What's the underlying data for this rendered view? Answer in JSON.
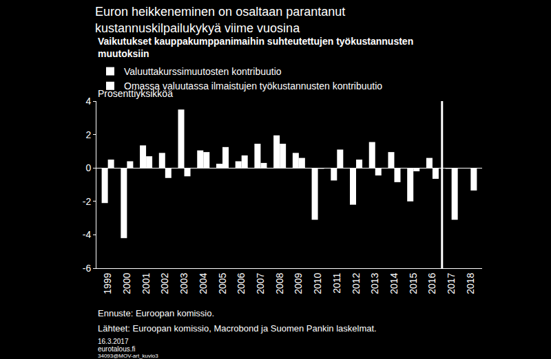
{
  "chart_data": {
    "type": "bar",
    "title": [
      "Euron heikkeneminen on osaltaan parantanut",
      "kustannuskilpailukykyä viime vuosina"
    ],
    "subtitle": [
      "Vaikutukset kauppakumppanimaihin suhteutettujen työkustannusten",
      "muutoksiin"
    ],
    "y_label": "Prosenttiyksikköä",
    "categories": [
      "1999",
      "2000",
      "2001",
      "2002",
      "2003",
      "2004",
      "2005",
      "2006",
      "2007",
      "2008",
      "2009",
      "2010",
      "2011",
      "2012",
      "2013",
      "2014",
      "2015",
      "2016",
      "2017",
      "2018"
    ],
    "series": [
      {
        "name": "Valuuttakurssimuutosten kontribuutio",
        "color": "#ffffff",
        "values": [
          -2.1,
          -4.2,
          1.35,
          0.9,
          3.5,
          1.05,
          0.25,
          0.4,
          1.45,
          1.95,
          0.9,
          -3.1,
          -0.75,
          -2.2,
          1.55,
          0.95,
          -2.0,
          0.6,
          -0.05,
          0
        ]
      },
      {
        "name": "Omassa valuutassa ilmaistujen työkustannusten kontribuutio",
        "color": "#ffffff",
        "values": [
          0.5,
          0.4,
          0.7,
          -0.6,
          -0.5,
          0.95,
          1.25,
          0.75,
          0.3,
          1.45,
          0.6,
          -0.05,
          1.1,
          0.5,
          -0.45,
          -0.85,
          -0.2,
          -0.65,
          -3.1,
          -1.35
        ]
      }
    ],
    "ylim": [
      -6,
      4
    ],
    "yticks": [
      -6,
      -4,
      -2,
      0,
      2,
      4
    ],
    "grid": false,
    "legend": "top-left",
    "forecast_from": "2017",
    "notes": [
      "Ennuste: Euroopan komissio.",
      "Lähteet: Euroopan komissio, Macrobond ja Suomen Pankin laskelmat."
    ],
    "footer": [
      "16.3.2017",
      "eurotalous.fi",
      "34093@MOV-art_kuvio3"
    ]
  }
}
